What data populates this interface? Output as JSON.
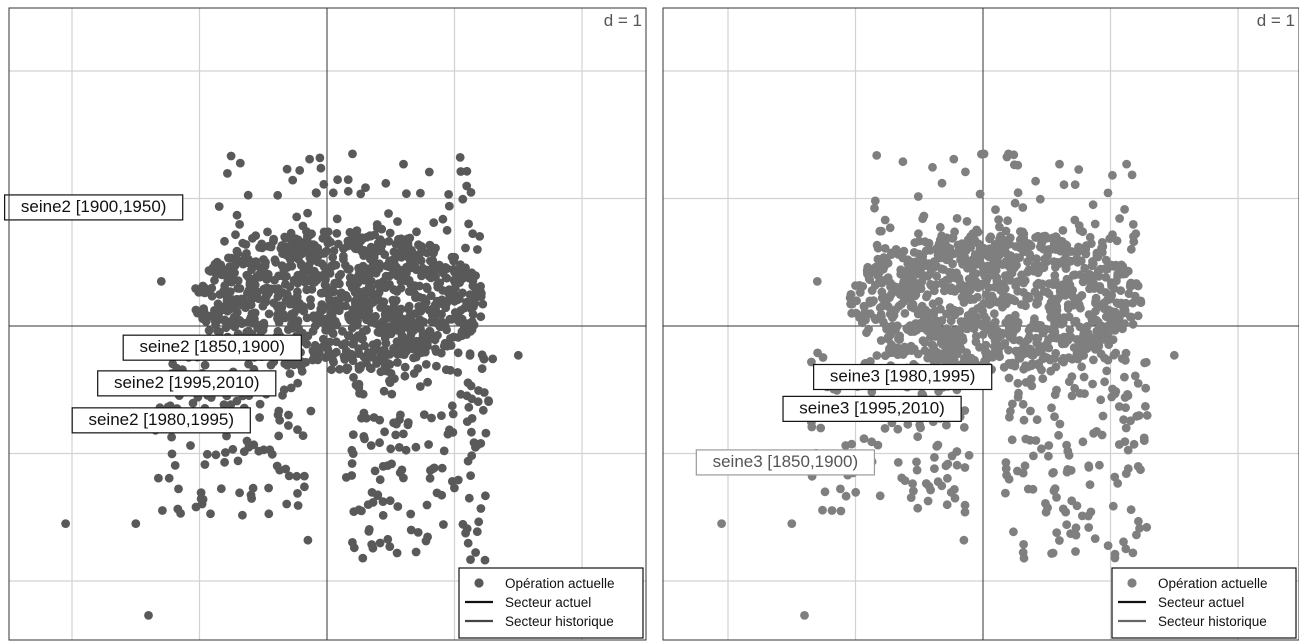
{
  "chart_data": [
    {
      "type": "scatter",
      "panel": "left",
      "scale_label": "d = 1",
      "grid": true,
      "point_color": "#595959",
      "labels": [
        {
          "text": "seine2 [1900,1950)",
          "x": -1.83,
          "y": 0.93,
          "faint": false
        },
        {
          "text": "seine2 [1850,1900)",
          "x": -0.9,
          "y": -0.17,
          "faint": false
        },
        {
          "text": "seine2 [1995,2010)",
          "x": -1.1,
          "y": -0.45,
          "faint": false
        },
        {
          "text": "seine2 [1980,1995)",
          "x": -1.3,
          "y": -0.74,
          "faint": false
        }
      ],
      "legend": {
        "position": "bottom-right",
        "entries": [
          {
            "label": "Opération actuelle",
            "symbol": "point",
            "color": "#595959"
          },
          {
            "label": "Secteur actuel",
            "symbol": "line",
            "color": "#111111"
          },
          {
            "label": "Secteur historique",
            "symbol": "line",
            "color": "#444444"
          }
        ]
      },
      "point_cloud": {
        "core": {
          "x_range": [
            -1.05,
            1.25
          ],
          "y_range": [
            -0.35,
            0.75
          ],
          "count": 1000
        },
        "upper_scatter": {
          "x_range": [
            -0.9,
            1.2
          ],
          "y_range": [
            0.6,
            1.35
          ],
          "count": 90
        },
        "lower_scatter": {
          "x_range": [
            -1.4,
            1.3
          ],
          "y_range": [
            -1.85,
            -0.2
          ],
          "count": 290
        },
        "outliers": [
          [
            -2.05,
            -1.55
          ],
          [
            -1.4,
            -2.27
          ],
          [
            -1.5,
            -1.55
          ],
          [
            0.55,
            -1.78
          ],
          [
            -0.15,
            -1.68
          ],
          [
            1.5,
            -0.23
          ],
          [
            0.2,
            1.35
          ],
          [
            0.6,
            1.27
          ],
          [
            -1.3,
            0.35
          ]
        ]
      }
    },
    {
      "type": "scatter",
      "panel": "right",
      "scale_label": "d = 1",
      "grid": true,
      "point_color": "#7f7f7f",
      "labels": [
        {
          "text": "seine3 [1980,1995)",
          "x": -0.63,
          "y": -0.4,
          "faint": false
        },
        {
          "text": "seine3 [1995,2010)",
          "x": -0.87,
          "y": -0.65,
          "faint": false
        },
        {
          "text": "seine3 [1850,1900)",
          "x": -1.55,
          "y": -1.07,
          "faint": true
        }
      ],
      "legend": {
        "position": "bottom-right",
        "entries": [
          {
            "label": "Opération actuelle",
            "symbol": "point",
            "color": "#7f7f7f"
          },
          {
            "label": "Secteur actuel",
            "symbol": "line",
            "color": "#111111"
          },
          {
            "label": "Secteur historique",
            "symbol": "line",
            "color": "#666666"
          }
        ]
      },
      "point_cloud": {
        "core": {
          "x_range": [
            -1.05,
            1.25
          ],
          "y_range": [
            -0.35,
            0.75
          ],
          "count": 1000
        },
        "upper_scatter": {
          "x_range": [
            -0.9,
            1.2
          ],
          "y_range": [
            0.6,
            1.35
          ],
          "count": 90
        },
        "lower_scatter": {
          "x_range": [
            -1.4,
            1.3
          ],
          "y_range": [
            -1.85,
            -0.2
          ],
          "count": 290
        },
        "outliers": [
          [
            -2.05,
            -1.55
          ],
          [
            -1.4,
            -2.27
          ],
          [
            -1.5,
            -1.55
          ],
          [
            0.55,
            -1.78
          ],
          [
            -0.15,
            -1.68
          ],
          [
            1.5,
            -0.23
          ],
          [
            0.2,
            1.35
          ],
          [
            0.6,
            1.27
          ],
          [
            -1.3,
            0.35
          ]
        ]
      }
    }
  ]
}
